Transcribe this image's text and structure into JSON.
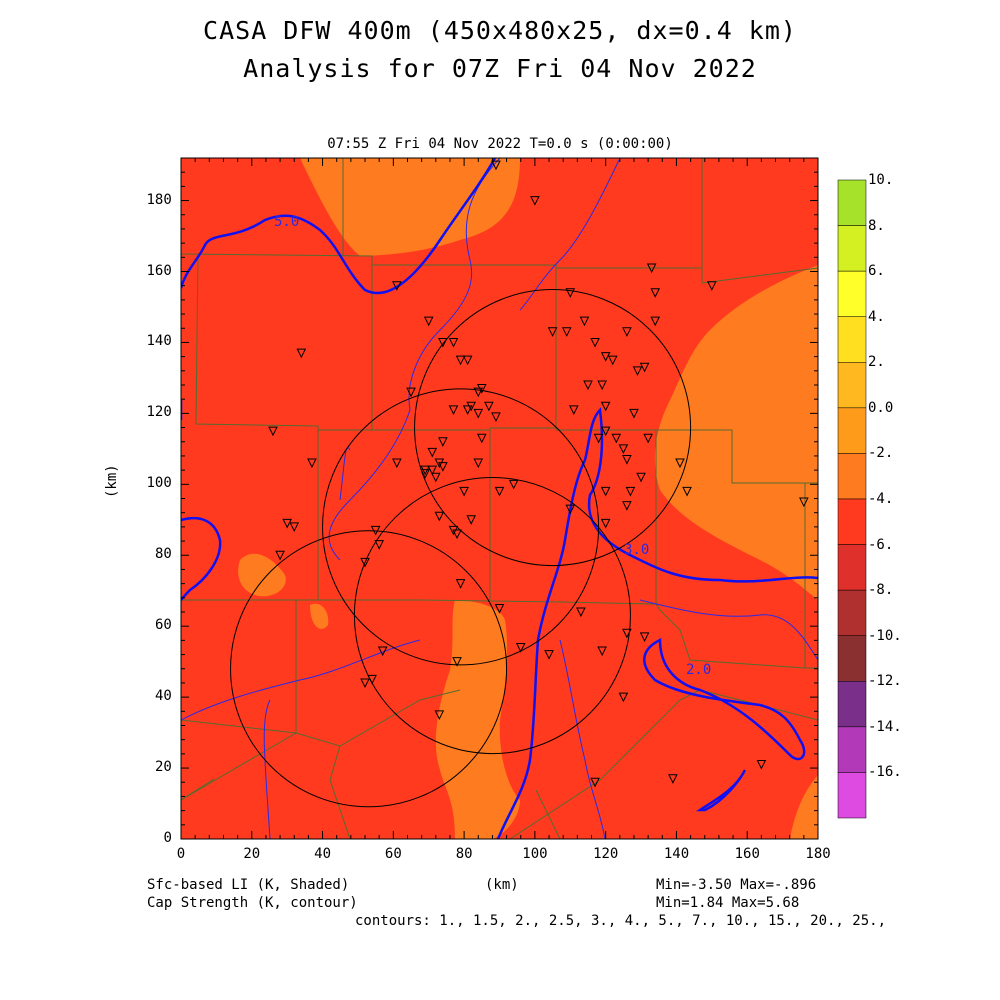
{
  "title_line1": "CASA DFW 400m (450x480x25, dx=0.4 km)",
  "title_line2": "Analysis for 07Z Fri 04 Nov 2022",
  "subtitle": "07:55 Z Fri 04 Nov 2022   T=0.0 s (0:00:00)",
  "x_label": "(km)",
  "y_label": "(km)",
  "x_ticks": [
    "0",
    "20",
    "40",
    "60",
    "80",
    "100",
    "120",
    "140",
    "160",
    "180"
  ],
  "y_ticks": [
    "0",
    "20",
    "40",
    "60",
    "80",
    "100",
    "120",
    "140",
    "160",
    "180"
  ],
  "x_range_km": [
    0,
    180
  ],
  "y_range_km": [
    0,
    192
  ],
  "colorbar": {
    "labels": [
      "10.",
      "8.",
      "6.",
      "4.",
      "2.",
      "0.0",
      "-2.",
      "-4.",
      "-6.",
      "-8.",
      "-10.",
      "-12.",
      "-14.",
      "-16."
    ],
    "colors": [
      "#a6e22a",
      "#d4ef22",
      "#ffff2a",
      "#ffdf20",
      "#ffb81f",
      "#ff9b1a",
      "#ff7b1f",
      "#ff3a1f",
      "#e0302c",
      "#b03030",
      "#8a3030",
      "#7a2f8a",
      "#b23ab8",
      "#de4be0"
    ]
  },
  "contour_labels": [
    "5.0",
    "3.0",
    "2.0"
  ],
  "footer_left_1": "Sfc-based LI (K, Shaded)",
  "footer_left_2": "Cap Strength (K, contour)",
  "footer_center": "(km)",
  "footer_right_1": "Min=-3.50 Max=-.896",
  "footer_right_2": "Min=1.84 Max=5.68",
  "footer_contours": "contours: 1., 1.5, 2., 2.5, 3., 4., 5., 7., 10., 15., 20., 25.,",
  "radars": [
    {
      "name": "radar-ring-north",
      "cx_km": 105,
      "cy_km": 116,
      "r_km": 39
    },
    {
      "name": "radar-ring-center",
      "cx_km": 79,
      "cy_km": 88,
      "r_km": 39
    },
    {
      "name": "radar-ring-east",
      "cx_km": 88,
      "cy_km": 63,
      "r_km": 39
    },
    {
      "name": "radar-ring-west",
      "cx_km": 53,
      "cy_km": 48,
      "r_km": 39
    }
  ],
  "stations_km": [
    [
      89,
      190
    ],
    [
      100,
      180
    ],
    [
      61,
      156
    ],
    [
      110,
      154
    ],
    [
      133,
      161
    ],
    [
      134,
      154
    ],
    [
      150,
      156
    ],
    [
      70,
      146
    ],
    [
      105,
      143
    ],
    [
      109,
      143
    ],
    [
      114,
      146
    ],
    [
      134,
      146
    ],
    [
      117,
      140
    ],
    [
      126,
      143
    ],
    [
      74,
      140
    ],
    [
      77,
      140
    ],
    [
      79,
      135
    ],
    [
      81,
      135
    ],
    [
      120,
      136
    ],
    [
      122,
      135
    ],
    [
      129,
      132
    ],
    [
      131,
      133
    ],
    [
      34,
      137
    ],
    [
      65,
      126
    ],
    [
      85,
      127
    ],
    [
      84,
      126
    ],
    [
      115,
      128
    ],
    [
      119,
      128
    ],
    [
      77,
      121
    ],
    [
      81,
      121
    ],
    [
      82,
      122
    ],
    [
      87,
      122
    ],
    [
      84,
      120
    ],
    [
      89,
      119
    ],
    [
      111,
      121
    ],
    [
      120,
      122
    ],
    [
      128,
      120
    ],
    [
      120,
      115
    ],
    [
      74,
      112
    ],
    [
      71,
      109
    ],
    [
      84,
      106
    ],
    [
      73,
      106
    ],
    [
      74,
      105
    ],
    [
      71,
      104
    ],
    [
      69,
      104
    ],
    [
      69,
      103
    ],
    [
      61,
      106
    ],
    [
      37,
      106
    ],
    [
      26,
      115
    ],
    [
      85,
      113
    ],
    [
      118,
      113
    ],
    [
      123,
      113
    ],
    [
      132,
      113
    ],
    [
      125,
      110
    ],
    [
      126,
      107
    ],
    [
      141,
      106
    ],
    [
      80,
      98
    ],
    [
      90,
      98
    ],
    [
      94,
      100
    ],
    [
      72,
      102
    ],
    [
      73,
      91
    ],
    [
      82,
      90
    ],
    [
      77,
      87
    ],
    [
      78,
      86
    ],
    [
      110,
      93
    ],
    [
      120,
      98
    ],
    [
      120,
      89
    ],
    [
      127,
      98
    ],
    [
      130,
      102
    ],
    [
      143,
      98
    ],
    [
      176,
      95
    ],
    [
      126,
      94
    ],
    [
      30,
      89
    ],
    [
      32,
      88
    ],
    [
      28,
      80
    ],
    [
      55,
      87
    ],
    [
      56,
      83
    ],
    [
      52,
      78
    ],
    [
      79,
      72
    ],
    [
      57,
      53
    ],
    [
      52,
      44
    ],
    [
      54,
      45
    ],
    [
      73,
      35
    ],
    [
      78,
      50
    ],
    [
      90,
      65
    ],
    [
      96,
      54
    ],
    [
      104,
      52
    ],
    [
      113,
      64
    ],
    [
      119,
      53
    ],
    [
      126,
      58
    ],
    [
      125,
      40
    ],
    [
      131,
      57
    ],
    [
      139,
      17
    ],
    [
      117,
      16
    ],
    [
      164,
      21
    ]
  ]
}
